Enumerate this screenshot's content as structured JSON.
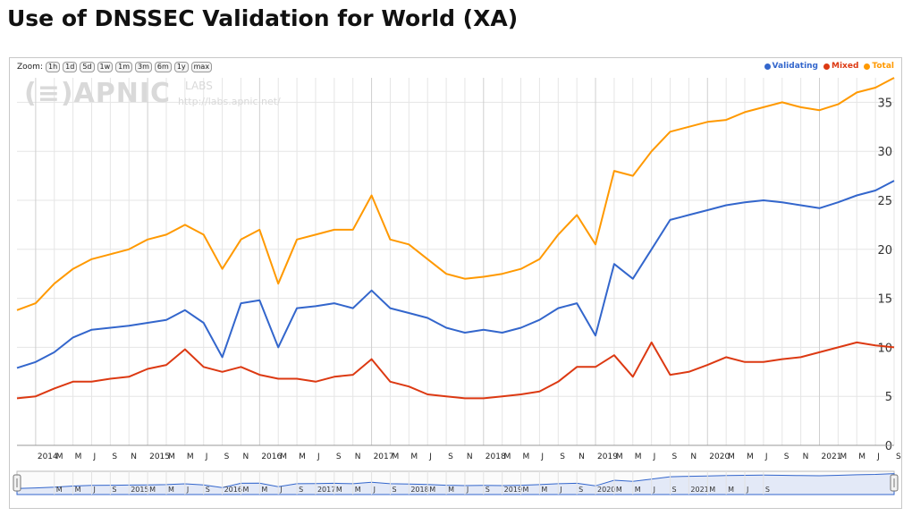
{
  "page": {
    "title": "Use of DNSSEC Validation for World (XA)"
  },
  "zoom": {
    "label": "Zoom:",
    "options": [
      "1h",
      "1d",
      "5d",
      "1w",
      "1m",
      "3m",
      "6m",
      "1y",
      "max"
    ]
  },
  "watermark": {
    "logo": "(≡)APNIC",
    "labs": "LABS",
    "url": "http://labs.apnic.net/"
  },
  "colors": {
    "validating": "#3366cc",
    "mixed": "#dc3912",
    "total": "#ff9900",
    "grid": "#e5e5e5",
    "navigator_fill": "#e3e9f7"
  },
  "chart_data": {
    "type": "line",
    "title": "Use of DNSSEC Validation for World (XA)",
    "xlabel": "",
    "ylabel": "",
    "ylim": [
      0,
      37.5
    ],
    "yticks": [
      0,
      5,
      10,
      15,
      20,
      25,
      30,
      35
    ],
    "grid": true,
    "legend_position": "top-right",
    "x_range": [
      "2013-11",
      "2021-09"
    ],
    "x_tick_labels": [
      "2014",
      "M",
      "M",
      "J",
      "S",
      "N",
      "2015",
      "M",
      "M",
      "J",
      "S",
      "N",
      "2016",
      "M",
      "M",
      "J",
      "S",
      "N",
      "2017",
      "M",
      "M",
      "J",
      "S",
      "N",
      "2018",
      "M",
      "M",
      "J",
      "S",
      "N",
      "2019",
      "M",
      "M",
      "J",
      "S",
      "N",
      "2020",
      "M",
      "M",
      "J",
      "S",
      "N",
      "2021",
      "M",
      "M",
      "J",
      "S"
    ],
    "navigator_tick_labels": [
      "M",
      "M",
      "J",
      "S",
      "2015",
      "M",
      "M",
      "J",
      "S",
      "2016",
      "M",
      "M",
      "J",
      "S",
      "2017",
      "M",
      "M",
      "J",
      "S",
      "2018",
      "M",
      "M",
      "J",
      "S",
      "2019",
      "M",
      "M",
      "J",
      "S",
      "2020",
      "M",
      "M",
      "J",
      "S",
      "2021",
      "M",
      "M",
      "J",
      "S"
    ],
    "x": [
      "2013-11",
      "2014-01",
      "2014-03",
      "2014-05",
      "2014-07",
      "2014-09",
      "2014-11",
      "2015-01",
      "2015-03",
      "2015-05",
      "2015-07",
      "2015-09",
      "2015-11",
      "2016-01",
      "2016-03",
      "2016-05",
      "2016-07",
      "2016-09",
      "2016-11",
      "2017-01",
      "2017-03",
      "2017-05",
      "2017-07",
      "2017-09",
      "2017-11",
      "2018-01",
      "2018-03",
      "2018-05",
      "2018-07",
      "2018-09",
      "2018-11",
      "2019-01",
      "2019-03",
      "2019-05",
      "2019-07",
      "2019-09",
      "2019-11",
      "2020-01",
      "2020-03",
      "2020-05",
      "2020-07",
      "2020-09",
      "2020-11",
      "2021-01",
      "2021-03",
      "2021-05",
      "2021-07",
      "2021-09"
    ],
    "series": [
      {
        "name": "Validating",
        "values": [
          7.9,
          8.5,
          9.5,
          11.0,
          11.8,
          12.0,
          12.2,
          12.5,
          12.8,
          13.8,
          12.5,
          9.0,
          14.5,
          14.8,
          10.0,
          14.0,
          14.2,
          14.5,
          14.0,
          15.8,
          14.0,
          13.5,
          13.0,
          12.0,
          11.5,
          11.8,
          11.5,
          12.0,
          12.8,
          14.0,
          14.5,
          11.2,
          18.5,
          17.0,
          20.0,
          23.0,
          23.5,
          24.0,
          24.5,
          24.8,
          25.0,
          24.8,
          24.5,
          24.2,
          24.8,
          25.5,
          26.0,
          27.0
        ]
      },
      {
        "name": "Mixed",
        "values": [
          4.8,
          5.0,
          5.8,
          6.5,
          6.5,
          6.8,
          7.0,
          7.8,
          8.2,
          9.8,
          8.0,
          7.5,
          8.0,
          7.2,
          6.8,
          6.8,
          6.5,
          7.0,
          7.2,
          8.8,
          6.5,
          6.0,
          5.2,
          5.0,
          4.8,
          4.8,
          5.0,
          5.2,
          5.5,
          6.5,
          8.0,
          8.0,
          9.2,
          7.0,
          10.5,
          7.2,
          7.5,
          8.2,
          9.0,
          8.5,
          8.5,
          8.8,
          9.0,
          9.5,
          10.0,
          10.5,
          10.2,
          10.0
        ]
      },
      {
        "name": "Total",
        "values": [
          13.8,
          14.5,
          16.5,
          18.0,
          19.0,
          19.5,
          20.0,
          21.0,
          21.5,
          22.5,
          21.5,
          18.0,
          21.0,
          22.0,
          16.5,
          21.0,
          21.5,
          22.0,
          22.0,
          25.5,
          21.0,
          20.5,
          19.0,
          17.5,
          17.0,
          17.2,
          17.5,
          18.0,
          19.0,
          21.5,
          23.5,
          20.5,
          28.0,
          27.5,
          30.0,
          32.0,
          32.5,
          33.0,
          33.2,
          34.0,
          34.5,
          35.0,
          34.5,
          34.2,
          34.8,
          36.0,
          36.5,
          37.5
        ]
      }
    ]
  }
}
